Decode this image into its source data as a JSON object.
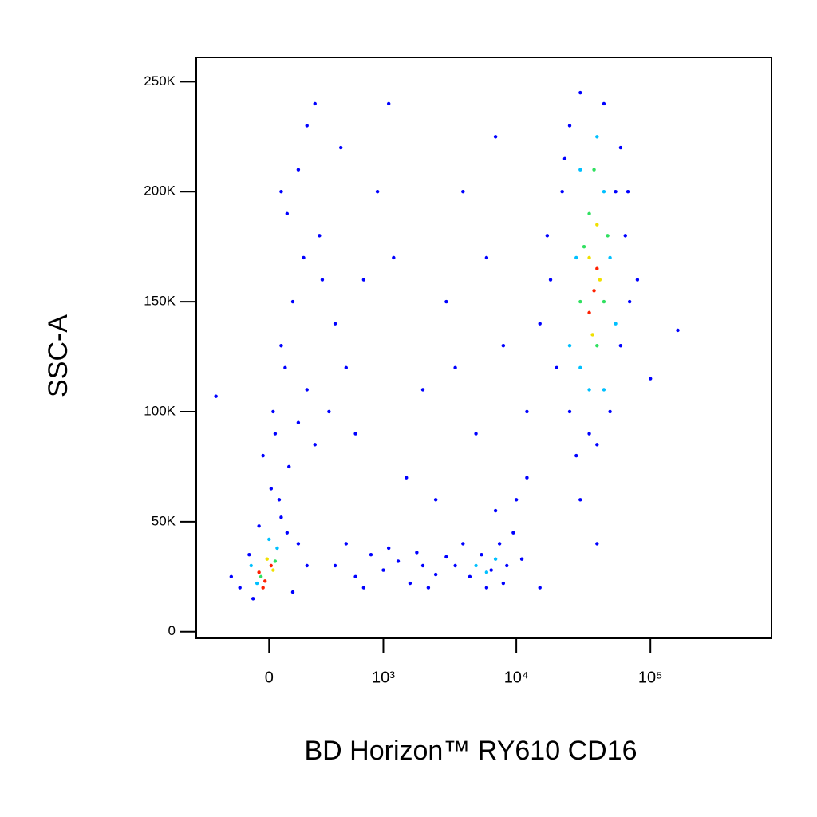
{
  "chart_data": {
    "type": "scatter",
    "x_label": "BD Horizon™ RY610 CD16",
    "y_label": "SSC-A",
    "x_scale": "biexponential",
    "xlim": [
      -460,
      800000
    ],
    "ylim": [
      -3000,
      261000
    ],
    "xticks": [
      0,
      {
        "value": 1000,
        "label": "10³"
      },
      {
        "value": 10000,
        "label": "10⁴"
      },
      {
        "value": 100000,
        "label": "10⁵"
      }
    ],
    "yticks": [
      0,
      {
        "value": 50000,
        "label": "50K"
      },
      {
        "value": 100000,
        "label": "100K"
      },
      {
        "value": 150000,
        "label": "150K"
      },
      {
        "value": 200000,
        "label": "200K"
      },
      {
        "value": 250000,
        "label": "250K"
      }
    ],
    "series": [
      {
        "color": "#0000ff",
        "x": [
          -150,
          -100,
          -80,
          120,
          150,
          -50,
          60,
          200,
          -200,
          90,
          50,
          100,
          30,
          150,
          200,
          80,
          250,
          60,
          120,
          180,
          90,
          150,
          200,
          250,
          60,
          300,
          400,
          350,
          500,
          20,
          -30,
          10,
          280,
          450,
          700,
          900,
          1100,
          1200,
          600,
          400,
          600,
          800,
          1000,
          1300,
          1600,
          2000,
          2500,
          3000,
          1100,
          700,
          1800,
          2200,
          500,
          3500,
          4500,
          5500,
          6500,
          7500,
          8500,
          9500,
          4000,
          7000,
          10000,
          12000,
          6000,
          8000,
          11000,
          2000,
          3000,
          1500,
          5000,
          4000,
          6000,
          8000,
          2500,
          7000,
          12000,
          3500,
          15000,
          40000,
          30000,
          100000,
          160000,
          80000,
          -300,
          20000,
          18000,
          22000,
          25000,
          30000,
          45000,
          60000,
          65000,
          60000,
          50000,
          35000,
          25000,
          15000,
          17000,
          55000,
          28000,
          70000,
          23000,
          68000,
          40000
        ],
        "values": [
          20000,
          35000,
          15000,
          18000,
          40000,
          48000,
          52000,
          30000,
          25000,
          45000,
          60000,
          75000,
          90000,
          95000,
          110000,
          120000,
          85000,
          130000,
          150000,
          170000,
          190000,
          210000,
          230000,
          240000,
          200000,
          160000,
          140000,
          100000,
          120000,
          100000,
          80000,
          65000,
          180000,
          220000,
          160000,
          200000,
          240000,
          170000,
          90000,
          30000,
          25000,
          35000,
          28000,
          32000,
          22000,
          30000,
          26000,
          34000,
          38000,
          20000,
          36000,
          20000,
          40000,
          30000,
          25000,
          35000,
          28000,
          40000,
          30000,
          45000,
          40000,
          55000,
          60000,
          70000,
          20000,
          22000,
          33000,
          110000,
          150000,
          70000,
          90000,
          200000,
          170000,
          130000,
          60000,
          225000,
          100000,
          120000,
          20000,
          40000,
          60000,
          115000,
          137000,
          160000,
          107000,
          120000,
          160000,
          200000,
          230000,
          245000,
          240000,
          220000,
          180000,
          130000,
          100000,
          90000,
          100000,
          140000,
          180000,
          200000,
          80000,
          150000,
          215000,
          200000,
          85000
        ]
      },
      {
        "color": "#00c0ff",
        "x": [
          -60,
          40,
          0,
          -90,
          5000,
          7000,
          6000,
          25000,
          30000,
          45000,
          50000,
          28000,
          40000,
          55000,
          35000,
          45000,
          30000
        ],
        "values": [
          22000,
          38000,
          42000,
          30000,
          30000,
          33000,
          27000,
          130000,
          210000,
          110000,
          170000,
          170000,
          225000,
          140000,
          110000,
          200000,
          120000
        ]
      },
      {
        "color": "#30e060",
        "x": [
          -40,
          30,
          35000,
          45000,
          30000,
          40000,
          38000,
          48000,
          32000
        ],
        "values": [
          25000,
          32000,
          190000,
          150000,
          150000,
          130000,
          210000,
          180000,
          175000
        ]
      },
      {
        "color": "#f0e000",
        "x": [
          -10,
          20,
          35000,
          42000,
          37000,
          40000
        ],
        "values": [
          33000,
          28000,
          170000,
          160000,
          135000,
          185000
        ]
      },
      {
        "color": "#ff2000",
        "x": [
          -50,
          -20,
          10,
          -30,
          38000,
          35000,
          40000
        ],
        "values": [
          27000,
          23000,
          30000,
          20000,
          155000,
          145000,
          165000
        ]
      }
    ]
  }
}
